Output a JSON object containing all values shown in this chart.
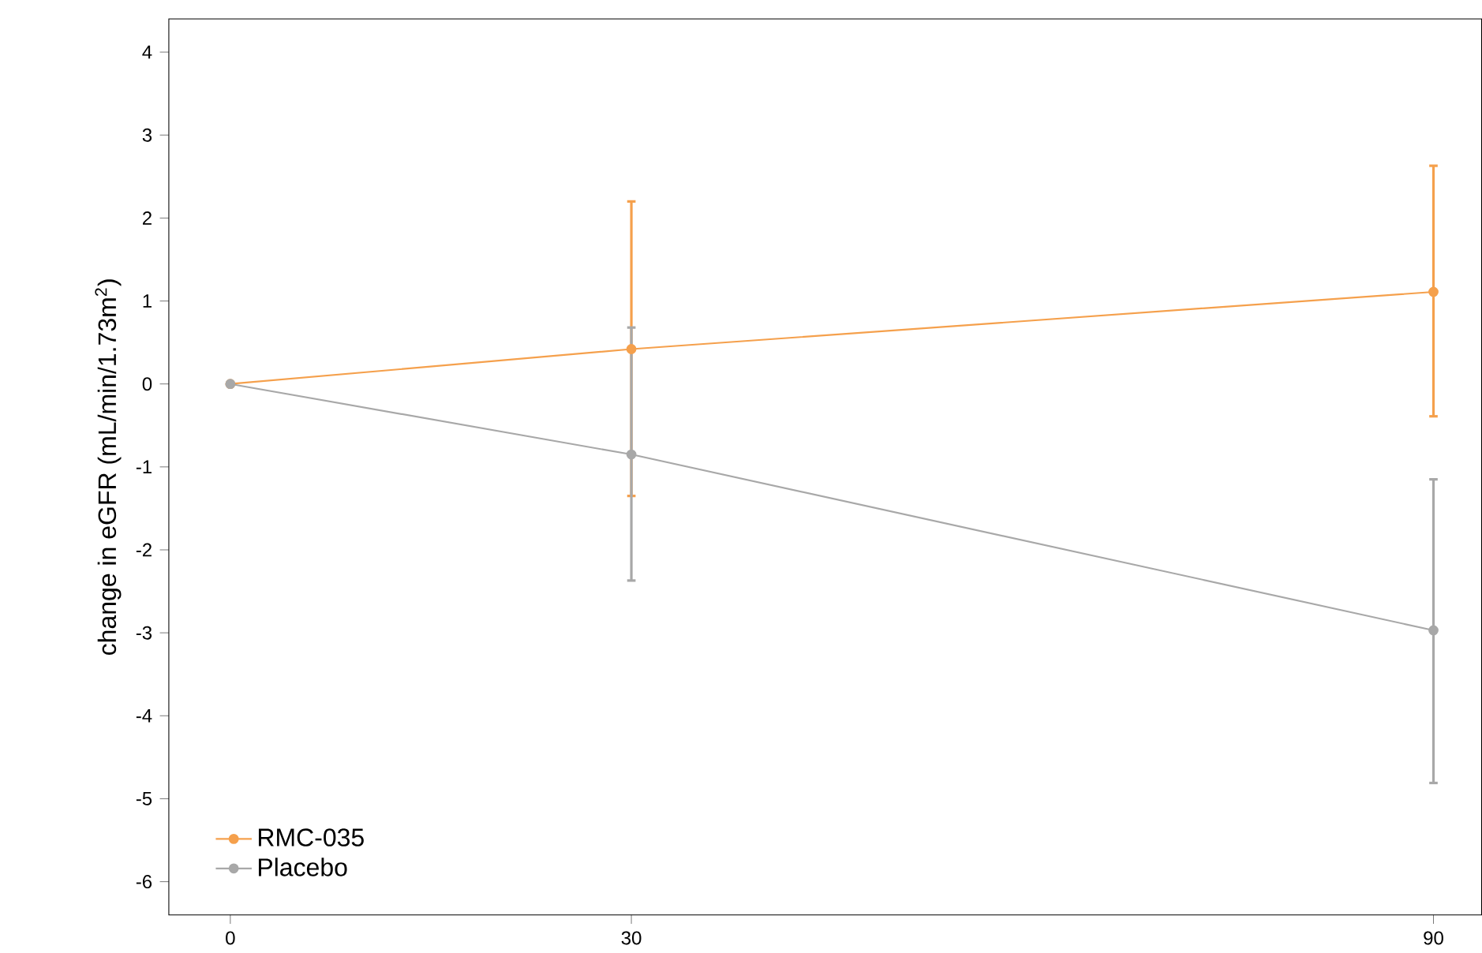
{
  "chart_data": {
    "type": "line",
    "ylabel": "change in eGFR (mL/min/1.73m$^{2}$)",
    "x": [
      0,
      30,
      90
    ],
    "xlim": [
      -4.6,
      93.6
    ],
    "xticks": [
      0,
      30,
      90
    ],
    "ylim": [
      -6.4,
      4.4
    ],
    "yticks": [
      -6,
      -5,
      -4,
      -3,
      -2,
      -1,
      0,
      1,
      2,
      3,
      4
    ],
    "series": [
      {
        "name": "RMC-035",
        "color": "#f5a04c",
        "values": [
          0,
          0.42,
          1.11
        ],
        "errors": [
          null,
          [
            -1.35,
            2.2
          ],
          [
            -0.39,
            2.63
          ]
        ]
      },
      {
        "name": "Placebo",
        "color": "#a8a8a8",
        "values": [
          0,
          -0.85,
          -2.97
        ],
        "errors": [
          null,
          [
            -2.37,
            0.68
          ],
          [
            -4.81,
            -1.15
          ]
        ]
      }
    ],
    "marker": "circle",
    "legend": "bottom left",
    "grid": false
  }
}
